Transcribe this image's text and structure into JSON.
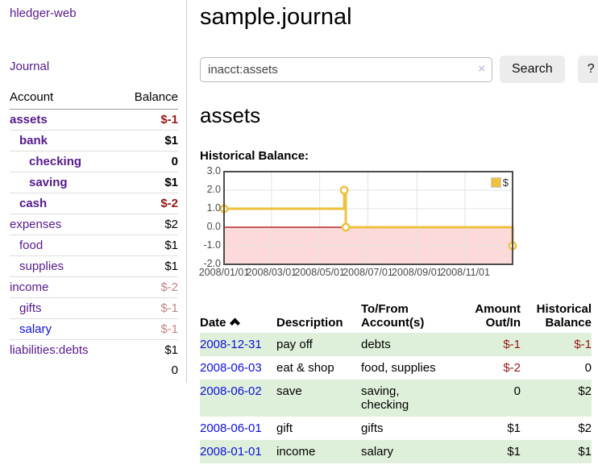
{
  "app": {
    "brand": "hledger-web",
    "nav_journal": "Journal"
  },
  "sidebar": {
    "header": {
      "account": "Account",
      "balance": "Balance"
    },
    "accounts": [
      {
        "label": "assets",
        "depth": 1,
        "bold": true,
        "link_class": "purple-link",
        "balance": "$-1",
        "balance_class": "neg"
      },
      {
        "label": "bank",
        "depth": 2,
        "bold": true,
        "link_class": "purple-link",
        "balance": "$1",
        "balance_class": ""
      },
      {
        "label": "checking",
        "depth": 3,
        "bold": true,
        "link_class": "purple-link",
        "balance": "0",
        "balance_class": ""
      },
      {
        "label": "saving",
        "depth": 3,
        "bold": true,
        "link_class": "purple-link",
        "balance": "$1",
        "balance_class": ""
      },
      {
        "label": "cash",
        "depth": 2,
        "bold": true,
        "link_class": "purple-link",
        "balance": "$-2",
        "balance_class": "neg"
      },
      {
        "label": "expenses",
        "depth": 1,
        "bold": false,
        "link_class": "purple-link",
        "balance": "$2",
        "balance_class": ""
      },
      {
        "label": "food",
        "depth": 2,
        "bold": false,
        "link_class": "purple-link",
        "balance": "$1",
        "balance_class": ""
      },
      {
        "label": "supplies",
        "depth": 2,
        "bold": false,
        "link_class": "purple-link",
        "balance": "$1",
        "balance_class": ""
      },
      {
        "label": "income",
        "depth": 1,
        "bold": false,
        "link_class": "purple-link",
        "balance": "$-2",
        "balance_class": "neg-dim"
      },
      {
        "label": "gifts",
        "depth": 2,
        "bold": false,
        "link_class": "purple-link",
        "balance": "$-1",
        "balance_class": "neg-dim"
      },
      {
        "label": "salary",
        "depth": 2,
        "bold": false,
        "link_class": "blue-link",
        "balance": "$-1",
        "balance_class": "neg-dim"
      },
      {
        "label": "liabilities:debts",
        "depth": 1,
        "bold": false,
        "link_class": "purple-link",
        "balance": "$1",
        "balance_class": ""
      }
    ],
    "total": "0"
  },
  "header": {
    "title": "sample.journal"
  },
  "search": {
    "value": "inacct:assets",
    "clear_icon": "×",
    "button_label": "Search",
    "help_label": "?"
  },
  "account_page": {
    "title": "assets",
    "chart_label": "Historical Balance:"
  },
  "chart_data": {
    "type": "line",
    "style": "steps",
    "title": "Historical Balance",
    "legend": "$",
    "legend_position": "top-right",
    "series": [
      {
        "name": "$",
        "points": [
          {
            "date": "2008-01-01",
            "day": 0,
            "value": 1
          },
          {
            "date": "2008-06-01",
            "day": 152,
            "value": 2
          },
          {
            "date": "2008-06-03",
            "day": 154,
            "value": 0
          },
          {
            "date": "2008-12-31",
            "day": 365,
            "value": -1
          }
        ]
      }
    ],
    "ylim": [
      -2,
      3
    ],
    "yticks": [
      3.0,
      2.0,
      1.0,
      0.0,
      -1.0,
      -2.0
    ],
    "xticks": [
      {
        "label": "2008/01/01",
        "day": 0
      },
      {
        "label": "2008/03/01",
        "day": 60
      },
      {
        "label": "2008/05/01",
        "day": 121
      },
      {
        "label": "2008/07/01",
        "day": 182
      },
      {
        "label": "2008/09/01",
        "day": 244
      },
      {
        "label": "2008/11/01",
        "day": 305
      }
    ],
    "x_max_day": 365,
    "grid": true,
    "colors": {
      "line": "#edc240",
      "marker_fill": "#ffffff",
      "negative_fill": "#fcdada",
      "zero_line": "#a00000",
      "gridline": "#e3e3e3",
      "plot_border": "#4c4c4c"
    }
  },
  "register": {
    "columns": {
      "date": "Date",
      "description": "Description",
      "accounts": "To/From Account(s)",
      "amount": "Amount Out/In",
      "balance": "Historical Balance"
    },
    "sort": {
      "column": "date",
      "direction": "asc"
    },
    "rows": [
      {
        "date": "2008-12-31",
        "description": "pay off",
        "accounts": "debts",
        "amount": "$-1",
        "amount_neg": true,
        "balance": "$-1",
        "balance_neg": true
      },
      {
        "date": "2008-06-03",
        "description": "eat & shop",
        "accounts": "food, supplies",
        "amount": "$-2",
        "amount_neg": true,
        "balance": "0",
        "balance_neg": false
      },
      {
        "date": "2008-06-02",
        "description": "save",
        "accounts": "saving, checking",
        "amount": "0",
        "amount_neg": false,
        "balance": "$2",
        "balance_neg": false
      },
      {
        "date": "2008-06-01",
        "description": "gift",
        "accounts": "gifts",
        "amount": "$1",
        "amount_neg": false,
        "balance": "$2",
        "balance_neg": false
      },
      {
        "date": "2008-01-01",
        "description": "income",
        "accounts": "salary",
        "amount": "$1",
        "amount_neg": false,
        "balance": "$1",
        "balance_neg": false
      }
    ]
  },
  "colors": {
    "link_purple": "#551a8b",
    "link_blue": "#0f0fd9",
    "negative_strong": "#951717",
    "negative_dim": "#c28484",
    "row_green": "#dff0da"
  }
}
